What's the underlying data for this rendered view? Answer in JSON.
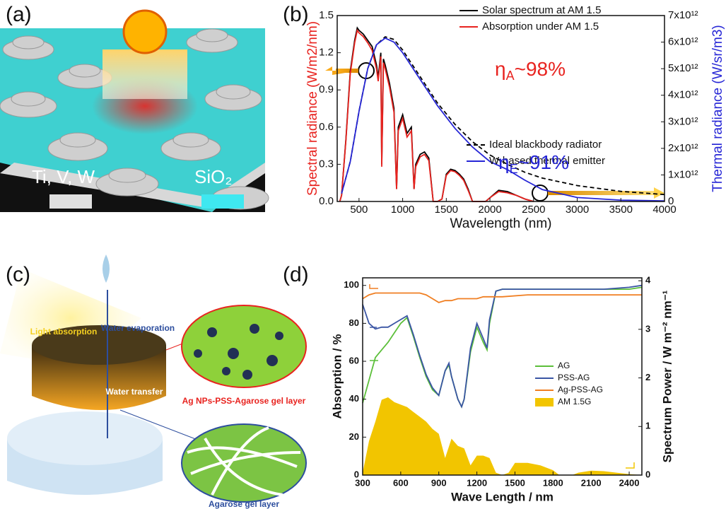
{
  "panels": {
    "a": {
      "label": "(a)",
      "metal": "Ti, V, W",
      "oxide": "SiO₂"
    },
    "b": {
      "label": "(b)"
    },
    "c": {
      "label": "(c)",
      "evaporation": "Water evaporation",
      "absorption": "Light absorption",
      "transfer": "Water transfer",
      "top_layer": "Ag NPs-PSS-Agarose gel layer",
      "bottom_layer": "Agarose gel layer"
    },
    "d": {
      "label": "(d)"
    }
  },
  "chart_data": [
    {
      "type": "line",
      "xlabel": "Wavelength (nm)",
      "ylabel": "Spectral radiance (W/m2/nm)",
      "y2label": "Thermal radiance (W/sr/m3)",
      "ylabel_color": "#e8231f",
      "y2label_color": "#2626d6",
      "xlim": [
        250,
        4000
      ],
      "xticks": [
        500,
        1000,
        1500,
        2000,
        2500,
        3000,
        3500,
        4000
      ],
      "ylim": [
        0,
        1.5
      ],
      "yticks": [
        {
          "value": 0,
          "label": "0.0"
        },
        0.3,
        0.6,
        0.9,
        1.2,
        1.5
      ],
      "y2lim": [
        0,
        7000000000000
      ],
      "y2ticks": [
        0,
        {
          "value": 1000000000000,
          "label": "1x10¹²"
        },
        {
          "value": 2000000000000,
          "label": "2x10¹²"
        },
        {
          "value": 3000000000000,
          "label": "3x10¹²"
        },
        {
          "value": 4000000000000,
          "label": "4x10¹²"
        },
        {
          "value": 5000000000000,
          "label": "5x10¹²"
        },
        {
          "value": 6000000000000,
          "label": "6x10¹²"
        },
        {
          "value": 7000000000000,
          "label": "7x10¹²"
        }
      ],
      "series": [
        {
          "name": "Solar spectrum at AM 1.5",
          "color": "#000000",
          "x": [
            280,
            300,
            350,
            400,
            450,
            480,
            500,
            550,
            600,
            650,
            700,
            720,
            750,
            760,
            780,
            800,
            850,
            900,
            930,
            950,
            1000,
            1050,
            1100,
            1130,
            1150,
            1200,
            1250,
            1300,
            1350,
            1400,
            1450,
            1500,
            1550,
            1600,
            1650,
            1700,
            1750,
            1800,
            1850,
            1900,
            1950,
            2000,
            2100,
            2200,
            2300,
            2400,
            2500
          ],
          "values": [
            0,
            0.05,
            0.5,
            1.05,
            1.3,
            1.4,
            1.38,
            1.35,
            1.3,
            1.25,
            1.1,
            1.0,
            1.2,
            0.3,
            1.15,
            1.1,
            0.95,
            0.75,
            0.1,
            0.6,
            0.7,
            0.55,
            0.6,
            0.1,
            0.3,
            0.38,
            0.4,
            0.35,
            0,
            0,
            0.02,
            0.22,
            0.26,
            0.25,
            0.22,
            0.18,
            0.1,
            0,
            0,
            0,
            0,
            0.03,
            0.09,
            0.08,
            0.05,
            0.02,
            0
          ]
        },
        {
          "name": "Absorption under AM 1.5",
          "color": "#e8231f",
          "x": [
            280,
            300,
            350,
            400,
            450,
            480,
            500,
            550,
            600,
            650,
            700,
            720,
            750,
            760,
            780,
            800,
            850,
            900,
            930,
            950,
            1000,
            1050,
            1100,
            1130,
            1150,
            1200,
            1250,
            1300,
            1350,
            1400,
            1450,
            1500,
            1550,
            1600,
            1650,
            1700,
            1750,
            1800,
            1850,
            1900,
            1950,
            2000,
            2100,
            2200,
            2300,
            2400,
            2500
          ],
          "values": [
            0,
            0.05,
            0.49,
            1.03,
            1.28,
            1.38,
            1.36,
            1.33,
            1.28,
            1.22,
            1.07,
            0.97,
            1.17,
            0.28,
            1.12,
            1.07,
            0.92,
            0.72,
            0.1,
            0.57,
            0.67,
            0.52,
            0.57,
            0.1,
            0.28,
            0.36,
            0.38,
            0.33,
            0,
            0,
            0.02,
            0.21,
            0.25,
            0.24,
            0.21,
            0.17,
            0.09,
            0,
            0,
            0,
            0,
            0.03,
            0.08,
            0.07,
            0.05,
            0.02,
            0
          ]
        },
        {
          "name": "Ideal blackbody radiator",
          "color": "#000000",
          "dash": true,
          "axis": "y2",
          "x": [
            300,
            400,
            500,
            600,
            700,
            800,
            900,
            1000,
            1200,
            1400,
            1600,
            1800,
            2000,
            2200,
            2400,
            2600,
            3000,
            3500,
            4000
          ],
          "values": [
            300000000000,
            1500000000000,
            3400000000000,
            5000000000000,
            5900000000000,
            6200000000000,
            6100000000000,
            5700000000000,
            4700000000000,
            3700000000000,
            2900000000000,
            2250000000000,
            1750000000000,
            1400000000000,
            1100000000000,
            880000000000,
            600000000000,
            380000000000,
            260000000000
          ]
        },
        {
          "name": "W-based thermal emitter",
          "color": "#2626d6",
          "axis": "y2",
          "x": [
            300,
            400,
            500,
            600,
            700,
            800,
            900,
            1000,
            1200,
            1400,
            1600,
            1800,
            2000,
            2200,
            2400,
            2600,
            3000,
            3500,
            4000
          ],
          "values": [
            300000000000,
            1500000000000,
            3400000000000,
            5000000000000,
            5900000000000,
            6150000000000,
            6000000000000,
            5600000000000,
            4600000000000,
            3600000000000,
            2750000000000,
            2050000000000,
            1500000000000,
            1200000000000,
            800000000000,
            450000000000,
            150000000000,
            50000000000,
            20000000000
          ]
        }
      ],
      "annotations": [
        {
          "symbol": "η",
          "sub": "A",
          "text": "~98%",
          "color": "#e8231f"
        },
        {
          "symbol": "η",
          "sub": "E",
          "text": "~91%",
          "color": "#2626d6"
        }
      ]
    },
    {
      "type": "line",
      "xlabel": "Wave Length / nm",
      "ylabel": "Absorption / %",
      "y2label": "Spectrum Power / W m⁻² nm⁻¹",
      "ylabel_color": "#111111",
      "y2label_color": "#111111",
      "xlim": [
        300,
        2500
      ],
      "xticks": [
        300,
        600,
        900,
        1200,
        1500,
        1800,
        2100,
        2400
      ],
      "ylim": [
        0,
        104
      ],
      "yticks": [
        0,
        20,
        40,
        60,
        80,
        100
      ],
      "y2lim": [
        0,
        4.06
      ],
      "y2ticks": [
        0,
        1,
        2,
        3,
        4
      ],
      "legend": "center right",
      "series": [
        {
          "name": "AG",
          "color": "#5cbf3a",
          "x": [
            300,
            350,
            400,
            450,
            500,
            550,
            600,
            650,
            700,
            750,
            800,
            850,
            900,
            950,
            980,
            1000,
            1050,
            1080,
            1100,
            1150,
            1200,
            1250,
            1280,
            1300,
            1350,
            1400,
            1600,
            1800,
            2000,
            2200,
            2400,
            2500
          ],
          "values": [
            38,
            50,
            62,
            66,
            70,
            75,
            80,
            83,
            73,
            62,
            52,
            45,
            42,
            55,
            58,
            52,
            40,
            36,
            40,
            65,
            78,
            70,
            66,
            80,
            97,
            98,
            98,
            98,
            98,
            98,
            98,
            99
          ]
        },
        {
          "name": "PSS-AG",
          "color": "#3a55a4",
          "x": [
            300,
            350,
            400,
            450,
            500,
            550,
            600,
            650,
            700,
            750,
            800,
            850,
            900,
            950,
            980,
            1000,
            1050,
            1080,
            1100,
            1150,
            1200,
            1250,
            1280,
            1300,
            1350,
            1400,
            1600,
            1800,
            2000,
            2200,
            2400,
            2500
          ],
          "values": [
            90,
            80,
            77,
            78,
            78,
            80,
            82,
            84,
            74,
            63,
            53,
            46,
            42,
            55,
            59,
            52,
            40,
            36,
            40,
            67,
            80,
            72,
            67,
            82,
            97,
            98,
            98,
            98,
            98,
            98,
            99,
            100
          ]
        },
        {
          "name": "Ag-PSS-AG",
          "color": "#f07f22",
          "x": [
            300,
            350,
            400,
            450,
            500,
            550,
            600,
            650,
            700,
            750,
            800,
            850,
            900,
            950,
            980,
            1000,
            1050,
            1080,
            1100,
            1150,
            1200,
            1250,
            1280,
            1300,
            1350,
            1400,
            1600,
            1800,
            2000,
            2200,
            2400,
            2500
          ],
          "values": [
            93,
            95,
            96,
            96,
            96,
            96,
            96,
            96,
            96,
            96,
            95,
            93,
            91,
            92,
            92,
            92,
            93,
            93,
            93,
            93,
            93,
            94,
            94,
            94,
            94,
            94,
            95,
            95,
            95,
            95,
            95,
            95
          ]
        },
        {
          "name": "AM 1.5G",
          "color": "#f2c500",
          "area": true,
          "axis": "y2",
          "x": [
            300,
            350,
            400,
            450,
            500,
            550,
            600,
            650,
            700,
            750,
            800,
            850,
            900,
            950,
            1000,
            1050,
            1100,
            1150,
            1200,
            1250,
            1300,
            1350,
            1400,
            1450,
            1500,
            1600,
            1700,
            1800,
            1850,
            1950,
            2000,
            2100,
            2200,
            2300,
            2400,
            2500
          ],
          "values": [
            0.05,
            0.7,
            1.1,
            1.55,
            1.6,
            1.5,
            1.45,
            1.4,
            1.3,
            1.2,
            1.1,
            0.95,
            0.85,
            0.35,
            0.75,
            0.6,
            0.55,
            0.2,
            0.4,
            0.4,
            0.35,
            0.05,
            0,
            0.05,
            0.25,
            0.25,
            0.2,
            0.1,
            0,
            0,
            0.05,
            0.09,
            0.08,
            0.05,
            0.02,
            0
          ]
        }
      ]
    }
  ]
}
